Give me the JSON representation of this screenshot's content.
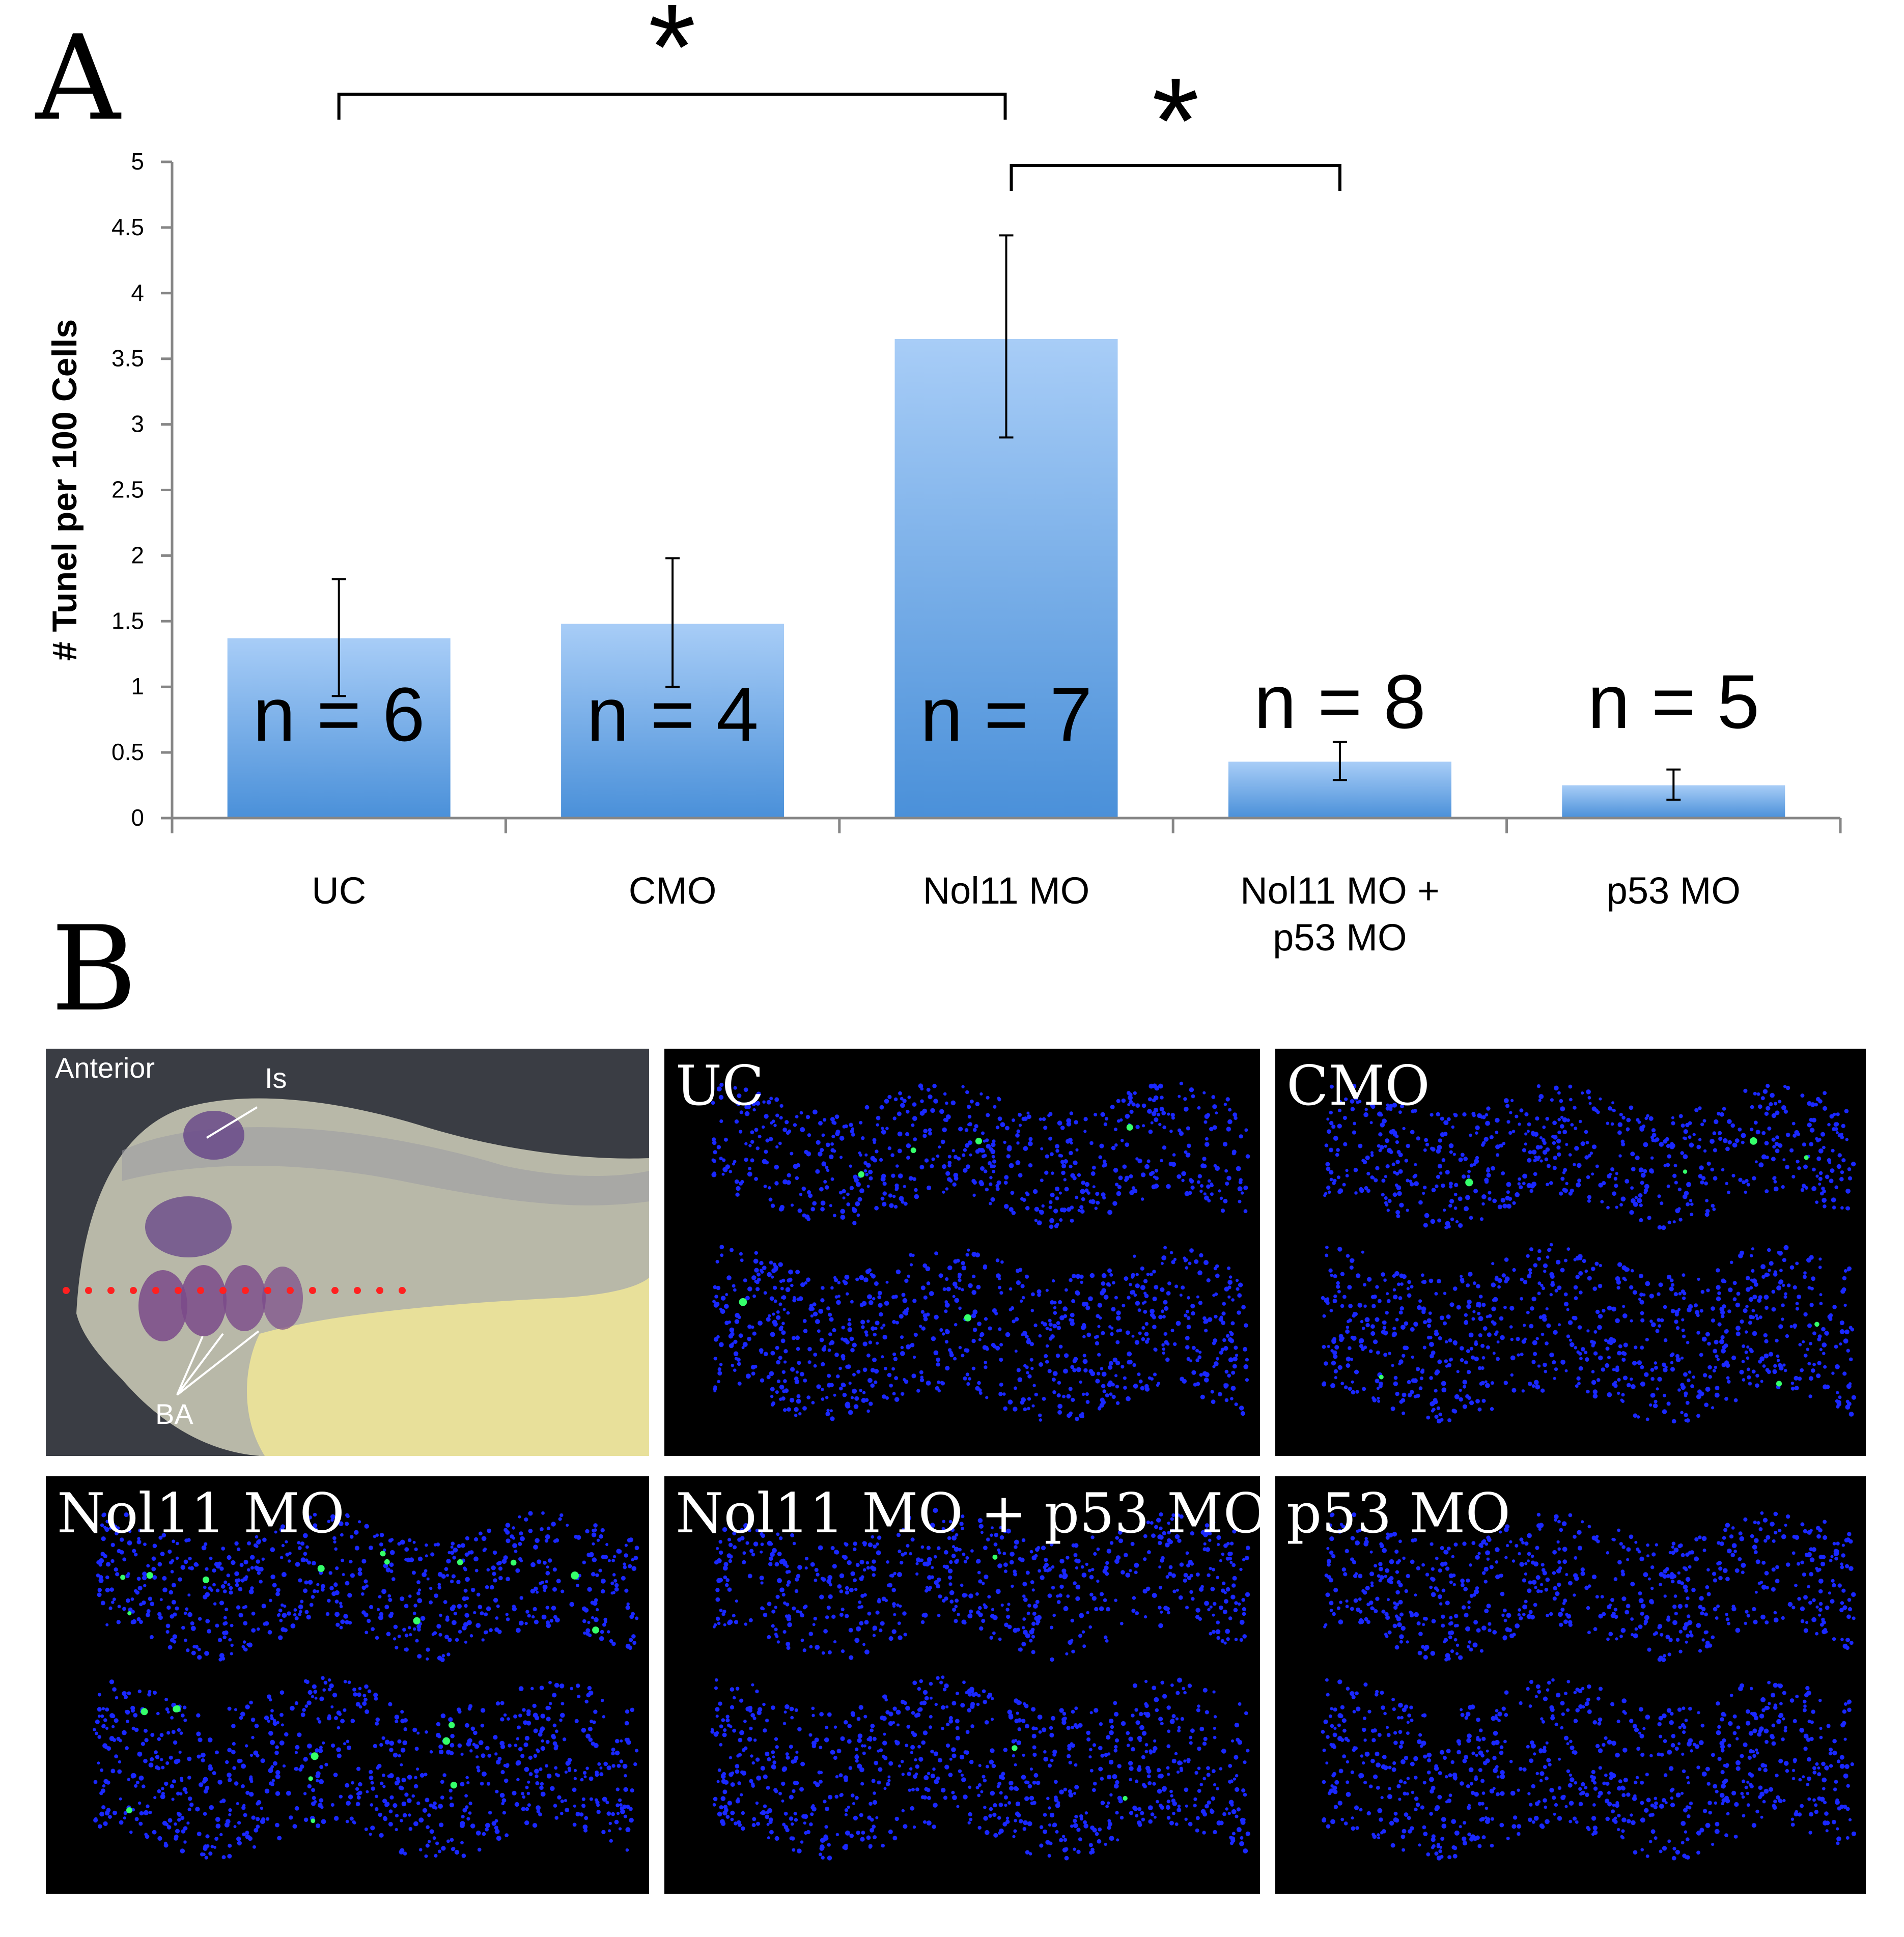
{
  "panel_a_label": "A",
  "panel_b_label": "B",
  "chart_data": {
    "type": "bar",
    "title": "",
    "ylabel": "# Tunel per 100 Cells",
    "xlabel": "",
    "ylim": [
      0,
      5
    ],
    "yticks": [
      0,
      0.5,
      1,
      1.5,
      2,
      2.5,
      3,
      3.5,
      4,
      4.5,
      5
    ],
    "ytick_labels": [
      "0",
      "0.5",
      "1",
      "1.5",
      "2",
      "2.5",
      "3",
      "3.5",
      "4",
      "4.5",
      "5"
    ],
    "categories": [
      [
        "UC"
      ],
      [
        "CMO"
      ],
      [
        "Nol11 MO"
      ],
      [
        "Nol11 MO +",
        "p53 MO"
      ],
      [
        "p53 MO"
      ]
    ],
    "values": [
      1.37,
      1.48,
      3.65,
      0.43,
      0.25
    ],
    "error_low": [
      0.93,
      1.0,
      2.9,
      0.29,
      0.14
    ],
    "error_high": [
      1.82,
      1.98,
      4.44,
      0.58,
      0.37
    ],
    "n_labels": [
      "n = 6",
      "n = 4",
      "n = 7",
      "n = 8",
      "n = 5"
    ],
    "significance": [
      {
        "from": 0,
        "to": 2,
        "label": "*"
      },
      {
        "from": 2,
        "to": 3,
        "label": "*"
      }
    ],
    "bar_color_top": "#a8cdf7",
    "bar_color_bottom": "#4a90d9",
    "grid": false,
    "legend": "none"
  },
  "panel_b": {
    "embryo": {
      "labels": {
        "anterior": "Anterior",
        "is": "Is",
        "ba": "BA"
      },
      "colors": {
        "background": "#3a3d44",
        "yolk": "#e8e09a",
        "stain": "#6a4a8a",
        "dots": "#ff2020"
      }
    },
    "sections": [
      {
        "label": "UC"
      },
      {
        "label": "CMO"
      },
      {
        "label": "Nol11 MO"
      },
      {
        "label": "Nol11 MO + p53 MO"
      },
      {
        "label": "p53 MO"
      }
    ],
    "colors": {
      "nuclei": "#1a28ff",
      "tunel": "#35ff6a",
      "background": "#000000"
    }
  }
}
